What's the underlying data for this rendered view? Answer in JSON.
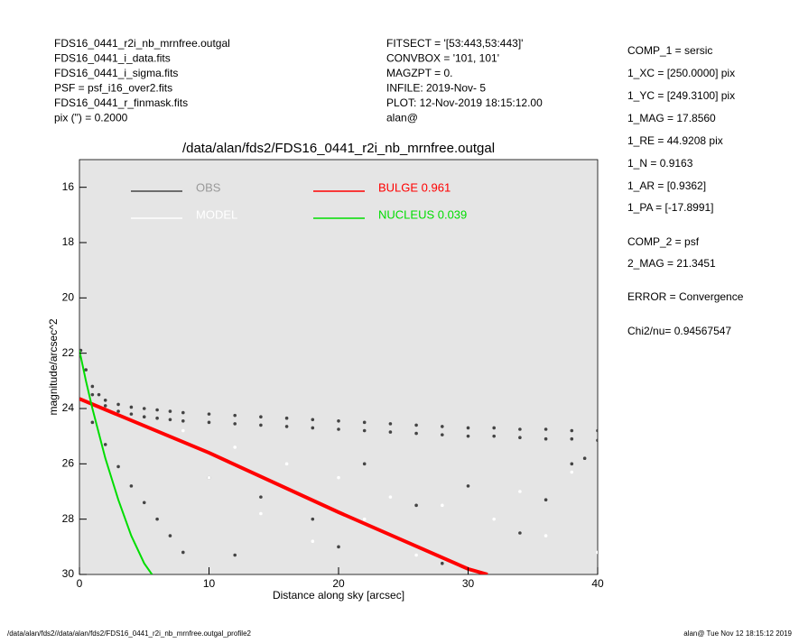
{
  "info_left": [
    "FDS16_0441_r2i_nb_mrnfree.outgal",
    "FDS16_0441_i_data.fits",
    "FDS16_0441_i_sigma.fits",
    "PSF     = psf_i16_over2.fits",
    "FDS16_0441_r_finmask.fits",
    "pix (\") =  0.2000"
  ],
  "info_mid": [
    "FITSECT = '[53:443,53:443]'",
    "CONVBOX = '101, 101'",
    "MAGZPT  =                  0.",
    "INFILE: 2019-Nov- 5",
    "PLOT: 12-Nov-2019 18:15:12.00",
    "alan@"
  ],
  "info_right": [
    "COMP_1  = sersic",
    "1_XC    = [250.0000] pix",
    "1_YC    = [249.3100] pix",
    "1_MAG   = 17.8560",
    "1_RE    = 44.9208 pix",
    "1_N     = 0.9163",
    "1_AR    = [0.9362]",
    "1_PA    = [-17.8991]",
    "COMP_2  = psf",
    "2_MAG   = 21.3451",
    "ERROR   = Convergence",
    "Chi2/nu=      0.94567547"
  ],
  "footer_left": "/data/alan/fds2//data/alan/fds2/FDS16_0441_r2i_nb_mrnfree.outgal_profile2",
  "footer_right": "alan@  Tue Nov 12 18:15:12 2019",
  "chart_data": {
    "type": "scatter",
    "title": "/data/alan/fds2/FDS16_0441_r2i_nb_mrnfree.outgal",
    "xlabel": "Distance along sky [arcsec]",
    "ylabel": "magnitude/arcsec^2",
    "xlim": [
      0,
      40
    ],
    "xticks": [
      0,
      10,
      20,
      30,
      40
    ],
    "ylim": [
      30,
      15
    ],
    "yticks": [
      16,
      18,
      20,
      22,
      24,
      26,
      28,
      30
    ],
    "background": "#e5e5e5",
    "series": [
      {
        "name": "OBS",
        "color": "#444444",
        "mode": "markers",
        "x": [
          0.1,
          0.5,
          1,
          1.5,
          2,
          3,
          4,
          5,
          6,
          7,
          8,
          10,
          12,
          14,
          16,
          18,
          20,
          22,
          24,
          26,
          28,
          30,
          32,
          34,
          36,
          38,
          40,
          1,
          2,
          3,
          4,
          5,
          6,
          7,
          8,
          10,
          12,
          14,
          16,
          18,
          20,
          22,
          24,
          26,
          28,
          30,
          32,
          34,
          36,
          38,
          40,
          1,
          2,
          3,
          4,
          5,
          6,
          7,
          8,
          10,
          14,
          18,
          22,
          26,
          30,
          34,
          38,
          12,
          20,
          28,
          36,
          39
        ],
        "y": [
          21.9,
          22.6,
          23.2,
          23.5,
          23.7,
          23.85,
          23.95,
          24.0,
          24.05,
          24.1,
          24.15,
          24.2,
          24.25,
          24.3,
          24.35,
          24.4,
          24.45,
          24.5,
          24.55,
          24.6,
          24.65,
          24.7,
          24.7,
          24.75,
          24.75,
          24.8,
          24.8,
          23.5,
          23.9,
          24.1,
          24.2,
          24.3,
          24.35,
          24.4,
          24.45,
          24.5,
          24.55,
          24.6,
          24.65,
          24.7,
          24.75,
          24.8,
          24.85,
          24.9,
          24.95,
          25.0,
          25.0,
          25.05,
          25.1,
          25.1,
          25.15,
          24.5,
          25.3,
          26.1,
          26.8,
          27.4,
          28,
          28.6,
          29.2,
          26.5,
          27.2,
          28,
          26,
          27.5,
          26.8,
          28.5,
          26,
          29.3,
          29,
          29.6,
          27.3,
          25.8
        ]
      },
      {
        "name": "MODEL",
        "color": "#ffffff",
        "mode": "markers",
        "x": [
          8,
          12,
          16,
          20,
          24,
          28,
          32,
          36,
          40,
          10,
          18,
          26,
          34,
          38,
          30,
          22,
          14
        ],
        "y": [
          24.8,
          25.4,
          26,
          26.5,
          27.2,
          27.5,
          28,
          28.6,
          29.2,
          26.5,
          28.8,
          29.3,
          27,
          26.3,
          29.8,
          28,
          27.8
        ]
      },
      {
        "name": "BULGE  0.961",
        "color": "#ff0000",
        "mode": "lines",
        "x": [
          0,
          10,
          20,
          30,
          31.5
        ],
        "y": [
          23.65,
          25.6,
          27.75,
          29.8,
          30
        ]
      },
      {
        "name": "NUCLEUS  0.039",
        "color": "#00dd00",
        "mode": "lines",
        "x": [
          0,
          0.5,
          1,
          2,
          3,
          4,
          5,
          5.6
        ],
        "y": [
          21.9,
          23.0,
          24.0,
          25.8,
          27.3,
          28.6,
          29.6,
          30
        ]
      }
    ]
  }
}
